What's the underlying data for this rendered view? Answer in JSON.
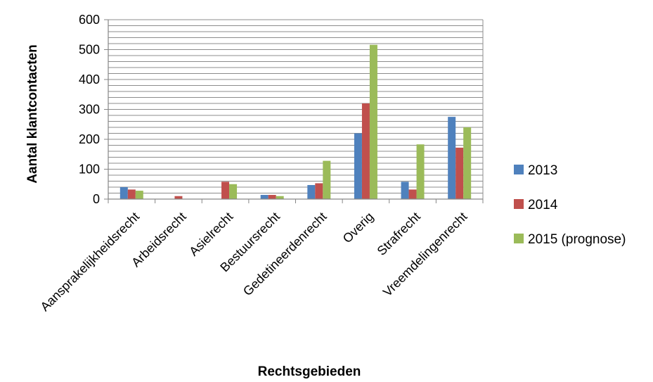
{
  "chart_data": {
    "type": "bar",
    "xlabel": "Rechtsgebieden",
    "ylabel": "Aantal klantcontacten",
    "ylim": [
      0,
      600
    ],
    "ymajor_ticks": [
      0,
      100,
      200,
      300,
      400,
      500,
      600
    ],
    "yminor_step": 20,
    "grid": true,
    "legend_position": "right",
    "categories": [
      "Aansprakelijkheidsrecht",
      "Arbeidsrecht",
      "Asielrecht",
      "Bestuursrecht",
      "Gedetineerdenrecht",
      "Overig",
      "Strafrecht",
      "Vreemdelingenrecht"
    ],
    "series": [
      {
        "name": "2013",
        "color": "#4F81BD",
        "values": [
          40,
          0,
          0,
          14,
          47,
          220,
          58,
          275
        ]
      },
      {
        "name": "2014",
        "color": "#C0504D",
        "values": [
          32,
          10,
          58,
          14,
          53,
          320,
          32,
          172
        ]
      },
      {
        "name": "2015 (prognose)",
        "color": "#9BBB59",
        "values": [
          28,
          0,
          50,
          10,
          128,
          516,
          183,
          240
        ]
      }
    ]
  }
}
